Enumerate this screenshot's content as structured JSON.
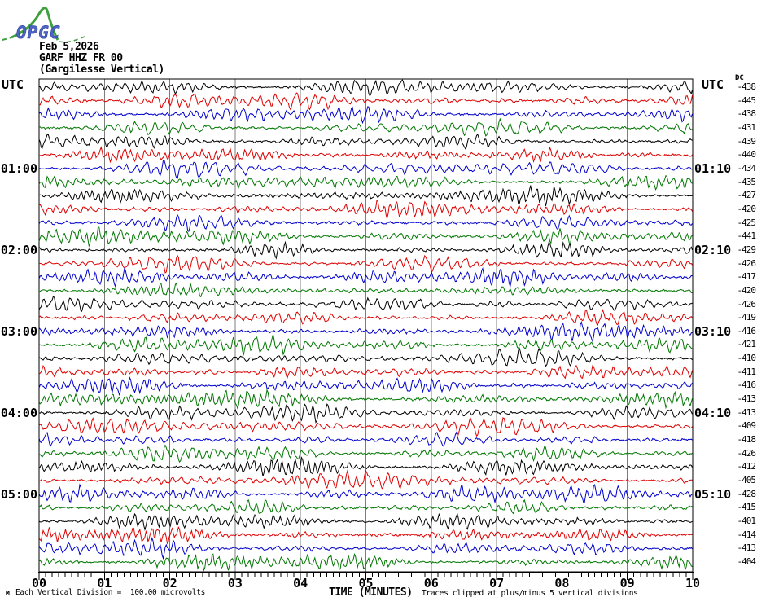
{
  "logo": {
    "text": "OPGC"
  },
  "header": {
    "date": "Feb 5,2026",
    "station": "GARF HHZ FR 00",
    "location": "(Gargilesse Vertical)"
  },
  "axes": {
    "utc_left": "UTC",
    "utc_right": "UTC",
    "dc_header": "DC",
    "xlabel": "TIME (MINUTES)",
    "x_ticks": [
      "00",
      "01",
      "02",
      "03",
      "04",
      "05",
      "06",
      "07",
      "08",
      "09",
      "10"
    ]
  },
  "footer": {
    "marker": "M",
    "scale_note": "Each Vertical Division =  100.00 microvolts",
    "clip_note": "Traces clipped at plus/minus 5 vertical divisions"
  },
  "chart_data": {
    "type": "line",
    "subtype": "helicorder-seismogram",
    "title": "GARF HHZ FR 00",
    "subtitle": "(Gargilesse Vertical)",
    "date": "Feb 5,2026",
    "xlabel": "TIME (MINUTES)",
    "x_range_minutes": [
      0,
      10
    ],
    "x_minor_tick_minutes": 0.1,
    "minutes_per_row": 10,
    "first_row_start_utc": "00:00",
    "scale_note": "Each Vertical Division =  100.00 microvolts",
    "clip_note": "Traces clipped at plus/minus 5 vertical divisions",
    "colors": {
      "black": "#000000",
      "red": "#dd0000",
      "blue": "#0000cc",
      "green": "#007700",
      "grid": "#7d7d7d"
    },
    "color_cycle": [
      "black",
      "red",
      "blue",
      "green"
    ],
    "rows": [
      {
        "left": "",
        "right": "",
        "dc": -438,
        "color": "black"
      },
      {
        "left": "",
        "right": "",
        "dc": -445,
        "color": "red"
      },
      {
        "left": "",
        "right": "",
        "dc": -438,
        "color": "blue"
      },
      {
        "left": "",
        "right": "",
        "dc": -431,
        "color": "green"
      },
      {
        "left": "",
        "right": "",
        "dc": -439,
        "color": "black"
      },
      {
        "left": "",
        "right": "",
        "dc": -440,
        "color": "red"
      },
      {
        "left": "01:00",
        "right": "01:10",
        "dc": -434,
        "color": "blue"
      },
      {
        "left": "",
        "right": "",
        "dc": -435,
        "color": "green"
      },
      {
        "left": "",
        "right": "",
        "dc": -427,
        "color": "black"
      },
      {
        "left": "",
        "right": "",
        "dc": -420,
        "color": "red"
      },
      {
        "left": "",
        "right": "",
        "dc": -425,
        "color": "blue"
      },
      {
        "left": "",
        "right": "",
        "dc": -441,
        "color": "green"
      },
      {
        "left": "02:00",
        "right": "02:10",
        "dc": -429,
        "color": "black"
      },
      {
        "left": "",
        "right": "",
        "dc": -426,
        "color": "red"
      },
      {
        "left": "",
        "right": "",
        "dc": -417,
        "color": "blue"
      },
      {
        "left": "",
        "right": "",
        "dc": -420,
        "color": "green"
      },
      {
        "left": "",
        "right": "",
        "dc": -426,
        "color": "black"
      },
      {
        "left": "",
        "right": "",
        "dc": -419,
        "color": "red"
      },
      {
        "left": "03:00",
        "right": "03:10",
        "dc": -416,
        "color": "blue"
      },
      {
        "left": "",
        "right": "",
        "dc": -421,
        "color": "green"
      },
      {
        "left": "",
        "right": "",
        "dc": -410,
        "color": "black"
      },
      {
        "left": "",
        "right": "",
        "dc": -411,
        "color": "red"
      },
      {
        "left": "",
        "right": "",
        "dc": -416,
        "color": "blue"
      },
      {
        "left": "",
        "right": "",
        "dc": -413,
        "color": "green"
      },
      {
        "left": "04:00",
        "right": "04:10",
        "dc": -413,
        "color": "black"
      },
      {
        "left": "",
        "right": "",
        "dc": -409,
        "color": "red"
      },
      {
        "left": "",
        "right": "",
        "dc": -418,
        "color": "blue"
      },
      {
        "left": "",
        "right": "",
        "dc": -426,
        "color": "green"
      },
      {
        "left": "",
        "right": "",
        "dc": -412,
        "color": "black"
      },
      {
        "left": "",
        "right": "",
        "dc": -405,
        "color": "red"
      },
      {
        "left": "05:00",
        "right": "05:10",
        "dc": -428,
        "color": "blue"
      },
      {
        "left": "",
        "right": "",
        "dc": -415,
        "color": "green"
      },
      {
        "left": "",
        "right": "",
        "dc": -401,
        "color": "black"
      },
      {
        "left": "",
        "right": "",
        "dc": -414,
        "color": "red"
      },
      {
        "left": "",
        "right": "",
        "dc": -413,
        "color": "blue"
      },
      {
        "left": "",
        "right": "",
        "dc": -404,
        "color": "green"
      }
    ]
  }
}
